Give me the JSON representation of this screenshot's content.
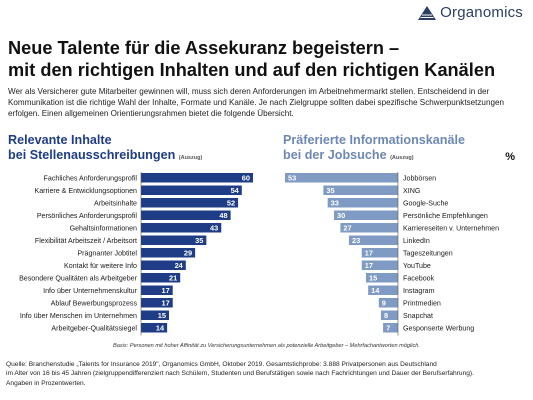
{
  "brand": {
    "name": "Organomics"
  },
  "title_line1": "Neue Talente für die Assekuranz begeistern –",
  "title_line2": "mit den richtigen Inhalten und auf den richtigen Kanälen",
  "intro": "Wer als Versicherer gute Mitarbeiter gewinnen will, muss sich deren Anforderungen im Arbeitnehmermarkt stellen. Entscheidend in der Kommunikation ist die richtige Wahl der Inhalte, Formate und Kanäle. Je nach Zielgruppe sollten dabei spezifische Schwerpunktsetzungen erfolgen. Einen allgemeinen Orientierungsrahmen bietet die folgende Übersicht.",
  "left_header_line1": "Relevante Inhalte",
  "left_header_line2": "bei Stellenausschreibungen",
  "left_header_suffix": "(Auszug)",
  "right_header_line1": "Präferierte Informationskanäle",
  "right_header_line2": "bei der Jobsuche",
  "right_header_suffix": "(Auszug)",
  "percent_symbol": "%",
  "note": "Basis: Personen mit hoher Affinität zu Versicherungsunternehmen als potenzielle Arbeitgeber – Mehrfachantworten möglich.",
  "source_line1": "Quelle: Branchenstudie „Talents for Insurance 2019\", Organomics GmbH, Oktober 2019. Gesamtstichprobe: 3.888 Privatpersonen aus Deutschland",
  "source_line2": "im Alter von 16 bis 45 Jahren (zielgruppendifferenziert nach Schülern, Studenten und Berufstätigen sowie nach Fachrichtungen und Dauer der Berufserfahrung).",
  "source_line3": "Angaben in Prozentwerten.",
  "colors": {
    "left_bar": "#1f3d87",
    "right_bar": "#7f9ac3",
    "left_header": "#1f3d87",
    "right_header": "#6d88b5"
  },
  "chart_data": [
    {
      "type": "bar",
      "orientation": "horizontal",
      "title": "Relevante Inhalte bei Stellenausschreibungen (Auszug)",
      "categories": [
        "Fachliches Anforderungsprofil",
        "Karriere & Entwicklungsoptionen",
        "Arbeitsinhalte",
        "Persönliches Anforderungsprofil",
        "Gehaltsinformationen",
        "Flexibilität Arbeitszeit / Arbeitsort",
        "Prägnanter Jobtitel",
        "Kontakt für weitere Info",
        "Besondere Qualitäten als Arbeitgeber",
        "Info über Unternehmenskultur",
        "Ablauf Bewerbungsprozess",
        "Info über Menschen im Unternehmen",
        "Arbeitgeber-Qualitätssiegel"
      ],
      "values": [
        60,
        54,
        52,
        48,
        43,
        35,
        29,
        24,
        21,
        17,
        17,
        15,
        14
      ],
      "unit": "%",
      "xlim": [
        0,
        60
      ],
      "direction": "grows-left-to-right"
    },
    {
      "type": "bar",
      "orientation": "horizontal",
      "title": "Präferierte Informationskanäle bei der Jobsuche (Auszug)",
      "categories": [
        "Jobbörsen",
        "XING",
        "Google-Suche",
        "Persönliche Empfehlungen",
        "Karriereseiten v. Unternehmen",
        "LinkedIn",
        "Tageszeitungen",
        "YouTube",
        "Facebook",
        "Instagram",
        "Printmedien",
        "Snapchat",
        "Gesponserte Werbung"
      ],
      "values": [
        53,
        35,
        33,
        30,
        27,
        23,
        17,
        17,
        15,
        14,
        9,
        8,
        7
      ],
      "unit": "%",
      "xlim": [
        0,
        53
      ],
      "direction": "grows-right-to-left"
    }
  ]
}
